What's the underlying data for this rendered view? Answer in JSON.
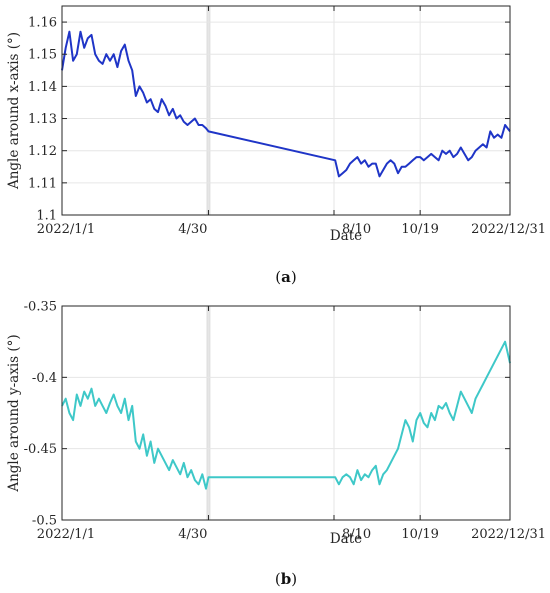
{
  "chart_data": [
    {
      "type": "line",
      "panel_label_letter": "a",
      "xlabel": "Date",
      "ylabel": "Angle around x-axis (°)",
      "x_tick_labels": [
        "2022/1/1",
        "4/30",
        "8/10",
        "10/19",
        "2022/12/31"
      ],
      "x_tick_days": [
        0,
        119,
        221,
        291,
        364
      ],
      "y_tick_labels": [
        "1.1",
        "1.11",
        "1.12",
        "1.13",
        "1.14",
        "1.15",
        "1.16"
      ],
      "ylim": [
        1.1,
        1.165
      ],
      "grid": true,
      "highlight_band_days": [
        119,
        221
      ],
      "color": "#1f35c7",
      "series": [
        {
          "x_days": [
            0,
            3,
            6,
            9,
            12,
            15,
            18,
            21,
            24,
            27,
            30,
            33,
            36,
            39,
            42,
            45,
            48,
            51,
            54,
            57,
            60,
            63,
            66,
            69,
            72,
            75,
            78,
            81,
            84,
            87,
            90,
            93,
            96,
            99,
            102,
            105,
            108,
            111,
            114,
            117,
            119,
            222,
            225,
            228,
            231,
            234,
            237,
            240,
            243,
            246,
            249,
            252,
            255,
            258,
            261,
            264,
            267,
            270,
            273,
            276,
            279,
            282,
            285,
            288,
            291,
            294,
            297,
            300,
            303,
            306,
            309,
            312,
            315,
            318,
            321,
            324,
            327,
            330,
            333,
            336,
            339,
            342,
            345,
            348,
            351,
            354,
            357,
            360,
            364
          ],
          "values": [
            1.145,
            1.152,
            1.157,
            1.148,
            1.15,
            1.157,
            1.152,
            1.155,
            1.156,
            1.15,
            1.148,
            1.147,
            1.15,
            1.148,
            1.15,
            1.146,
            1.151,
            1.153,
            1.148,
            1.145,
            1.137,
            1.14,
            1.138,
            1.135,
            1.136,
            1.133,
            1.132,
            1.136,
            1.134,
            1.131,
            1.133,
            1.13,
            1.131,
            1.129,
            1.128,
            1.129,
            1.13,
            1.128,
            1.128,
            1.127,
            1.126,
            1.117,
            1.112,
            1.113,
            1.114,
            1.116,
            1.117,
            1.118,
            1.116,
            1.117,
            1.115,
            1.116,
            1.116,
            1.112,
            1.114,
            1.116,
            1.117,
            1.116,
            1.113,
            1.115,
            1.115,
            1.116,
            1.117,
            1.118,
            1.118,
            1.117,
            1.118,
            1.119,
            1.118,
            1.117,
            1.12,
            1.119,
            1.12,
            1.118,
            1.119,
            1.121,
            1.119,
            1.117,
            1.118,
            1.12,
            1.121,
            1.122,
            1.121,
            1.126,
            1.124,
            1.125,
            1.124,
            1.128,
            1.126
          ]
        }
      ]
    },
    {
      "type": "line",
      "panel_label_letter": "b",
      "xlabel": "Date",
      "ylabel": "Angle around y-axis (°)",
      "x_tick_labels": [
        "2022/1/1",
        "4/30",
        "8/10",
        "10/19",
        "2022/12/31"
      ],
      "x_tick_days": [
        0,
        119,
        221,
        291,
        364
      ],
      "y_tick_labels": [
        "-0.5",
        "-0.45",
        "-0.4",
        "-0.35"
      ],
      "ylim": [
        -0.5,
        -0.35
      ],
      "grid": true,
      "highlight_band_days": [
        119,
        221
      ],
      "color": "#3ec8c8",
      "series": [
        {
          "x_days": [
            0,
            3,
            6,
            9,
            12,
            15,
            18,
            21,
            24,
            27,
            30,
            33,
            36,
            39,
            42,
            45,
            48,
            51,
            54,
            57,
            60,
            63,
            66,
            69,
            72,
            75,
            78,
            81,
            84,
            87,
            90,
            93,
            96,
            99,
            102,
            105,
            108,
            111,
            114,
            117,
            119,
            222,
            225,
            228,
            231,
            234,
            237,
            240,
            243,
            246,
            249,
            252,
            255,
            258,
            261,
            264,
            267,
            270,
            273,
            276,
            279,
            282,
            285,
            288,
            291,
            294,
            297,
            300,
            303,
            306,
            309,
            312,
            315,
            318,
            321,
            324,
            327,
            330,
            333,
            336,
            339,
            342,
            345,
            348,
            351,
            354,
            357,
            360,
            364
          ],
          "values": [
            -0.42,
            -0.415,
            -0.425,
            -0.43,
            -0.412,
            -0.42,
            -0.41,
            -0.415,
            -0.408,
            -0.42,
            -0.415,
            -0.42,
            -0.425,
            -0.418,
            -0.412,
            -0.42,
            -0.425,
            -0.415,
            -0.43,
            -0.42,
            -0.445,
            -0.45,
            -0.44,
            -0.455,
            -0.445,
            -0.46,
            -0.45,
            -0.455,
            -0.46,
            -0.465,
            -0.458,
            -0.463,
            -0.468,
            -0.46,
            -0.47,
            -0.465,
            -0.472,
            -0.475,
            -0.468,
            -0.478,
            -0.47,
            -0.47,
            -0.475,
            -0.47,
            -0.468,
            -0.47,
            -0.475,
            -0.465,
            -0.472,
            -0.468,
            -0.47,
            -0.465,
            -0.462,
            -0.475,
            -0.468,
            -0.465,
            -0.46,
            -0.455,
            -0.45,
            -0.44,
            -0.43,
            -0.435,
            -0.445,
            -0.43,
            -0.425,
            -0.432,
            -0.435,
            -0.425,
            -0.43,
            -0.42,
            -0.422,
            -0.418,
            -0.425,
            -0.43,
            -0.42,
            -0.41,
            -0.415,
            -0.42,
            -0.425,
            -0.415,
            -0.41,
            -0.405,
            -0.4,
            -0.395,
            -0.39,
            -0.385,
            -0.38,
            -0.375,
            -0.39
          ]
        }
      ]
    }
  ]
}
